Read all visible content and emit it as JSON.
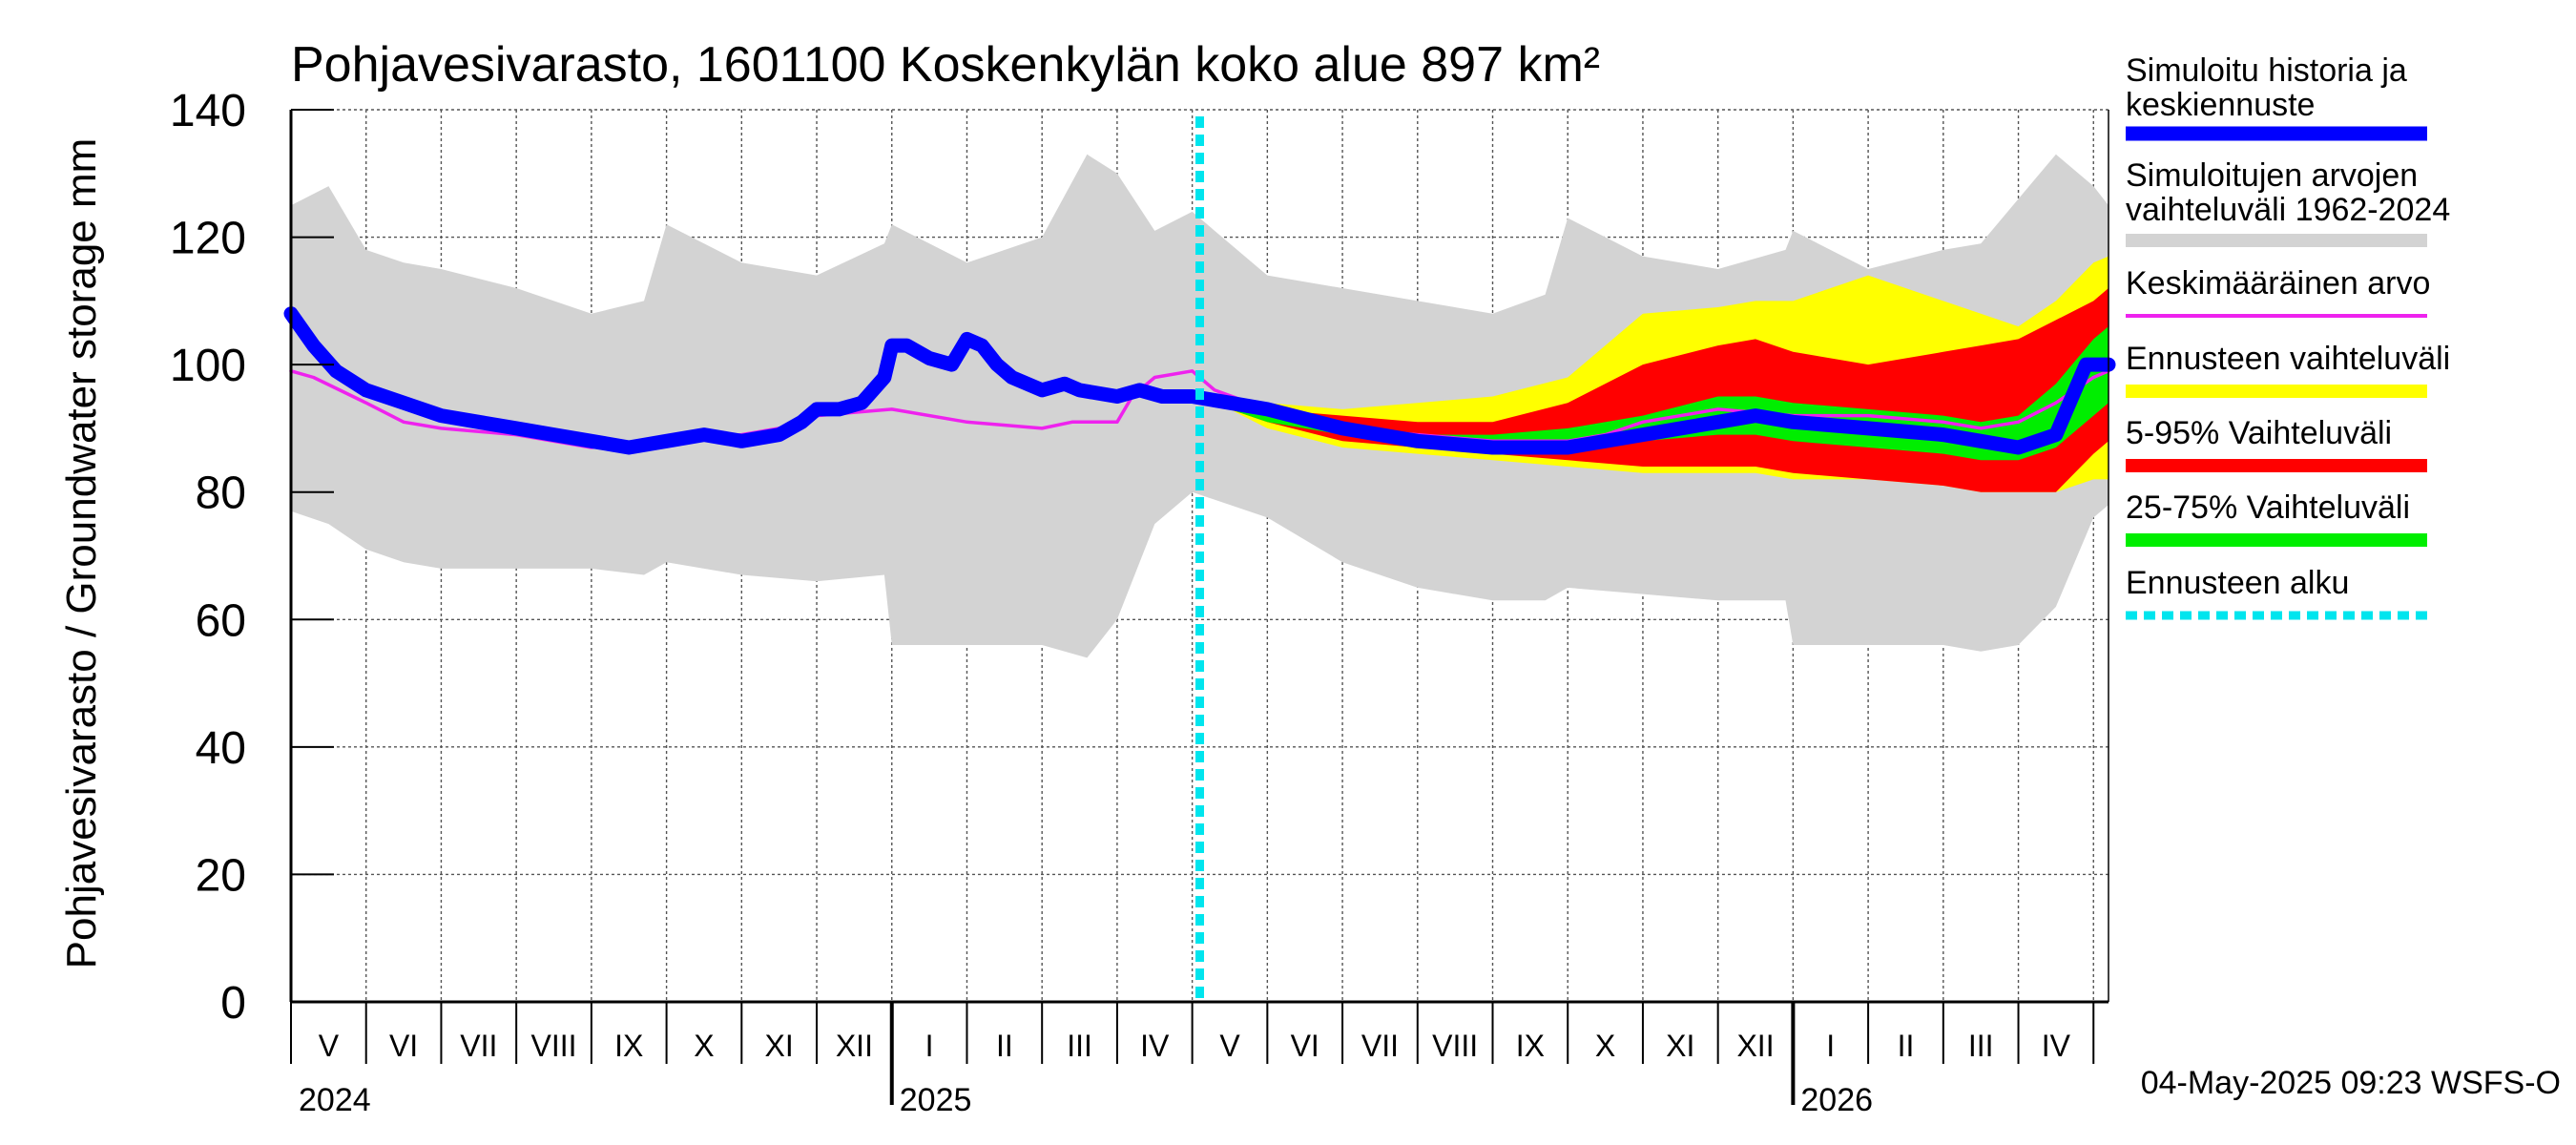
{
  "chart_data": {
    "type": "area",
    "title": "Pohjavesivarasto, 1601100 Koskenkylän koko alue 897 km²",
    "ylabel": "Pohjavesivarasto / Groundwater storage   mm",
    "ylim": [
      0,
      140
    ],
    "y_ticks": [
      0,
      20,
      40,
      60,
      80,
      100,
      120,
      140
    ],
    "y_tick_labels": [
      "0",
      "20",
      "40",
      "60",
      "80",
      "100",
      "120",
      "140"
    ],
    "x_unit": "months since 2024-04-30",
    "xlim": [
      0,
      24.2
    ],
    "month_labels": [
      {
        "x": 0.5,
        "label": "V"
      },
      {
        "x": 1.5,
        "label": "VI"
      },
      {
        "x": 2.5,
        "label": "VII"
      },
      {
        "x": 3.5,
        "label": "VIII"
      },
      {
        "x": 4.5,
        "label": "IX"
      },
      {
        "x": 5.5,
        "label": "X"
      },
      {
        "x": 6.5,
        "label": "XI"
      },
      {
        "x": 7.5,
        "label": "XII"
      },
      {
        "x": 8.5,
        "label": "I"
      },
      {
        "x": 9.5,
        "label": "II"
      },
      {
        "x": 10.5,
        "label": "III"
      },
      {
        "x": 11.5,
        "label": "IV"
      },
      {
        "x": 12.5,
        "label": "V"
      },
      {
        "x": 13.5,
        "label": "VI"
      },
      {
        "x": 14.5,
        "label": "VII"
      },
      {
        "x": 15.5,
        "label": "VIII"
      },
      {
        "x": 16.5,
        "label": "IX"
      },
      {
        "x": 17.5,
        "label": "X"
      },
      {
        "x": 18.5,
        "label": "XI"
      },
      {
        "x": 19.5,
        "label": "XII"
      },
      {
        "x": 20.5,
        "label": "I"
      },
      {
        "x": 21.5,
        "label": "II"
      },
      {
        "x": 22.5,
        "label": "III"
      },
      {
        "x": 23.5,
        "label": "IV"
      }
    ],
    "year_labels": [
      {
        "x": 0,
        "label": "2024"
      },
      {
        "x": 8,
        "label": "2025"
      },
      {
        "x": 20,
        "label": "2026"
      }
    ],
    "year_boundaries": [
      8,
      20
    ],
    "forecast_start": 12.1,
    "series": [
      {
        "name": "Simuloitujen arvojen vaihteluväli 1962-2024",
        "kind": "band",
        "color": "#d3d3d3",
        "x": [
          0,
          0.5,
          1,
          1.5,
          2,
          3,
          4,
          4.7,
          5,
          6,
          7,
          7.9,
          8,
          9,
          10,
          10.6,
          11,
          11.5,
          12,
          13,
          14,
          15,
          16,
          16.7,
          17,
          18,
          19,
          19.9,
          20,
          21,
          22,
          22.5,
          23,
          23.5,
          24,
          24.2
        ],
        "upper": [
          125,
          128,
          118,
          116,
          115,
          112,
          108,
          110,
          122,
          116,
          114,
          119,
          122,
          116,
          120,
          133,
          130,
          121,
          124,
          114,
          112,
          110,
          108,
          111,
          123,
          117,
          115,
          118,
          121,
          115,
          118,
          119,
          126,
          133,
          128,
          125
        ],
        "lower": [
          77,
          75,
          71,
          69,
          68,
          68,
          68,
          67,
          69,
          67,
          66,
          67,
          56,
          56,
          56,
          54,
          60,
          75,
          80,
          76,
          69,
          65,
          63,
          63,
          65,
          64,
          63,
          63,
          56,
          56,
          56,
          55,
          56,
          62,
          76,
          78
        ]
      },
      {
        "name": "Ennusteen vaihteluväli",
        "kind": "band",
        "color": "#ffff00",
        "x": [
          12.1,
          12.5,
          13,
          14,
          15,
          16,
          17,
          18,
          19,
          19.5,
          20,
          21,
          22,
          22.5,
          23,
          23.5,
          24,
          24.2
        ],
        "upper": [
          95,
          95,
          94,
          93,
          94,
          95,
          98,
          108,
          109,
          110,
          110,
          114,
          110,
          108,
          106,
          110,
          116,
          117
        ],
        "lower": [
          95,
          93,
          90,
          87,
          86,
          85,
          84,
          83,
          83,
          83,
          82,
          82,
          81,
          80,
          80,
          80,
          82,
          82
        ]
      },
      {
        "name": "5-95% Vaihteluväli",
        "kind": "band",
        "color": "#ff0000",
        "x": [
          12.1,
          12.5,
          13,
          14,
          15,
          16,
          17,
          18,
          19,
          19.5,
          20,
          21,
          22,
          22.5,
          23,
          23.5,
          24,
          24.2
        ],
        "upper": [
          95,
          94,
          93,
          92,
          91,
          91,
          94,
          100,
          103,
          104,
          102,
          100,
          102,
          103,
          104,
          107,
          110,
          112
        ],
        "lower": [
          95,
          93,
          91,
          88,
          87,
          86,
          85,
          84,
          84,
          84,
          83,
          82,
          81,
          80,
          80,
          80,
          86,
          88
        ]
      },
      {
        "name": "25-75% Vaihteluväli",
        "kind": "band",
        "color": "#00ee00",
        "x": [
          12.1,
          12.5,
          13,
          14,
          15,
          16,
          17,
          18,
          19,
          19.5,
          20,
          21,
          22,
          22.5,
          23,
          23.5,
          24,
          24.2
        ],
        "upper": [
          95,
          94,
          93,
          90,
          89,
          89,
          90,
          92,
          95,
          95,
          94,
          93,
          92,
          91,
          92,
          97,
          104,
          106
        ],
        "lower": [
          95,
          93,
          91,
          89,
          88,
          87,
          87,
          88,
          89,
          89,
          88,
          87,
          86,
          85,
          85,
          87,
          92,
          94
        ]
      },
      {
        "name": "Keskimääräinen arvo",
        "kind": "line",
        "color": "#ee22ee",
        "x": [
          0,
          0.3,
          1,
          1.5,
          2,
          3,
          4,
          5,
          6,
          6.5,
          7,
          8,
          9,
          10,
          10.4,
          11,
          11.2,
          11.5,
          12,
          12.3,
          13,
          14,
          15,
          16,
          17,
          17.5,
          18,
          19,
          20,
          21,
          22,
          22.5,
          23,
          23.5,
          24,
          24.2
        ],
        "values": [
          99,
          98,
          94,
          91,
          90,
          89,
          87,
          88,
          89,
          90,
          92,
          93,
          91,
          90,
          91,
          91,
          95,
          98,
          99,
          96,
          93,
          90,
          89,
          88,
          88,
          89,
          91,
          93,
          92,
          92,
          91,
          90,
          91,
          94,
          98,
          99
        ]
      },
      {
        "name": "Simuloitu historia ja keskiennuste",
        "kind": "line",
        "color": "#0000ff",
        "x": [
          0,
          0.3,
          0.6,
          1,
          1.5,
          2,
          2.5,
          3,
          3.5,
          4,
          4.5,
          5,
          5.5,
          6,
          6.5,
          6.8,
          7,
          7.3,
          7.6,
          7.9,
          8,
          8.2,
          8.5,
          8.8,
          9,
          9.2,
          9.4,
          9.6,
          10,
          10.3,
          10.5,
          11,
          11.3,
          11.6,
          12,
          12.5,
          13,
          14,
          15,
          16,
          17,
          18,
          19,
          19.5,
          20,
          21,
          22,
          22.5,
          23,
          23.5,
          23.9,
          24.2
        ],
        "values": [
          108,
          103,
          99,
          96,
          94,
          92,
          91,
          90,
          89,
          88,
          87,
          88,
          89,
          88,
          89,
          91,
          93,
          93,
          94,
          98,
          103,
          103,
          101,
          100,
          104,
          103,
          100,
          98,
          96,
          97,
          96,
          95,
          96,
          95,
          95,
          94,
          93,
          90,
          88,
          87,
          87,
          89,
          91,
          92,
          91,
          90,
          89,
          88,
          87,
          89,
          100,
          100
        ]
      }
    ],
    "forecast_line": {
      "name": "Ennusteen alku",
      "color": "#00e5ee"
    },
    "legend": [
      {
        "label": "Simuloitu historia ja keskiennuste",
        "color": "#0000ff"
      },
      {
        "label": "Simuloitujen arvojen vaihteluväli 1962-2024",
        "color": "#d3d3d3"
      },
      {
        "label": "Keskimääräinen arvo",
        "color": "#ee22ee"
      },
      {
        "label": "Ennusteen vaihteluväli",
        "color": "#ffff00"
      },
      {
        "label": "5-95% Vaihteluväli",
        "color": "#ff0000"
      },
      {
        "label": "25-75% Vaihteluväli",
        "color": "#00ee00"
      },
      {
        "label": "Ennusteen alku",
        "color": "#00e5ee"
      }
    ],
    "legend_placement": "right",
    "footer": "04-May-2025 09:23 WSFS-O",
    "grid": true
  }
}
